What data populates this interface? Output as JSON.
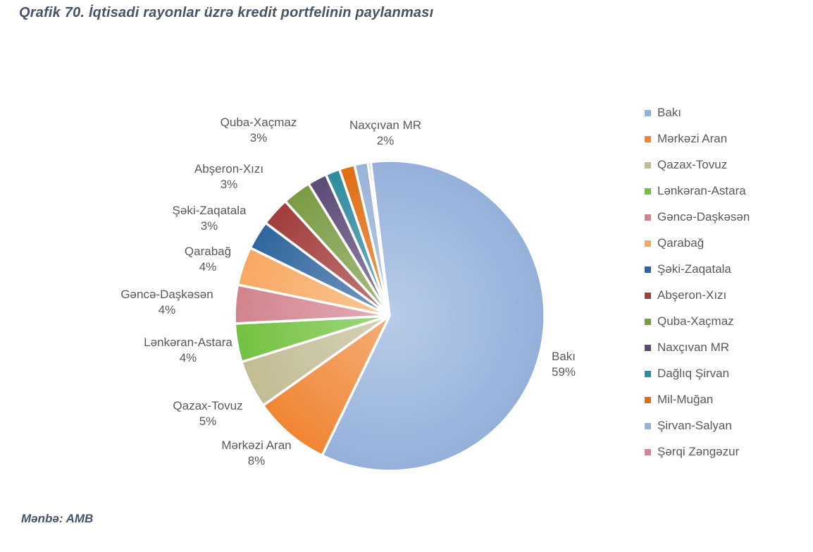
{
  "header": {
    "title": "Qrafik 70. İqtisadi rayonlar üzrə kredit portfelinin paylanması"
  },
  "footer": {
    "source": "Mənbə: AMB"
  },
  "chart_data": {
    "type": "pie",
    "title": "Qrafik 70. İqtisadi rayonlar üzrə kredit portfelinin paylanması",
    "legend_position": "right",
    "source": "Mənbə: AMB",
    "slices": [
      {
        "name": "Bakı",
        "value": 59,
        "pct_label": "59%",
        "color": "#94B0DA"
      },
      {
        "name": "Mərkəzi Aran",
        "value": 8,
        "pct_label": "8%",
        "color": "#EF8532"
      },
      {
        "name": "Qazax-Tovuz",
        "value": 5,
        "pct_label": "5%",
        "color": "#C3BB93"
      },
      {
        "name": "Lənkəran-Astara",
        "value": 4,
        "pct_label": "4%",
        "color": "#72C13F"
      },
      {
        "name": "Gəncə-Daşkəsən",
        "value": 4,
        "pct_label": "4%",
        "color": "#D2838D"
      },
      {
        "name": "Qarabağ",
        "value": 4,
        "pct_label": "4%",
        "color": "#F7A861"
      },
      {
        "name": "Şəki-Zaqatala",
        "value": 3,
        "pct_label": "3%",
        "color": "#2F659E"
      },
      {
        "name": "Abşeron-Xızı",
        "value": 3,
        "pct_label": "3%",
        "color": "#A13C3A"
      },
      {
        "name": "Quba-Xaçmaz",
        "value": 3,
        "pct_label": "3%",
        "color": "#7A9B43"
      },
      {
        "name": "Naxçıvan MR",
        "value": 2,
        "pct_label": "2%",
        "color": "#5D4A78"
      },
      {
        "name": "Dağlıq Şirvan",
        "value": 1.5,
        "pct_label": "",
        "color": "#2F8B9F"
      },
      {
        "name": "Mil-Muğan",
        "value": 1.6,
        "pct_label": "",
        "color": "#DF6D12"
      },
      {
        "name": "Şirvan-Salyan",
        "value": 1.4,
        "pct_label": "",
        "color": "#98B2D6"
      },
      {
        "name": "Şərqi Zəngəzur",
        "value": 0.3,
        "pct_label": "",
        "color": "#D8838F"
      }
    ]
  }
}
